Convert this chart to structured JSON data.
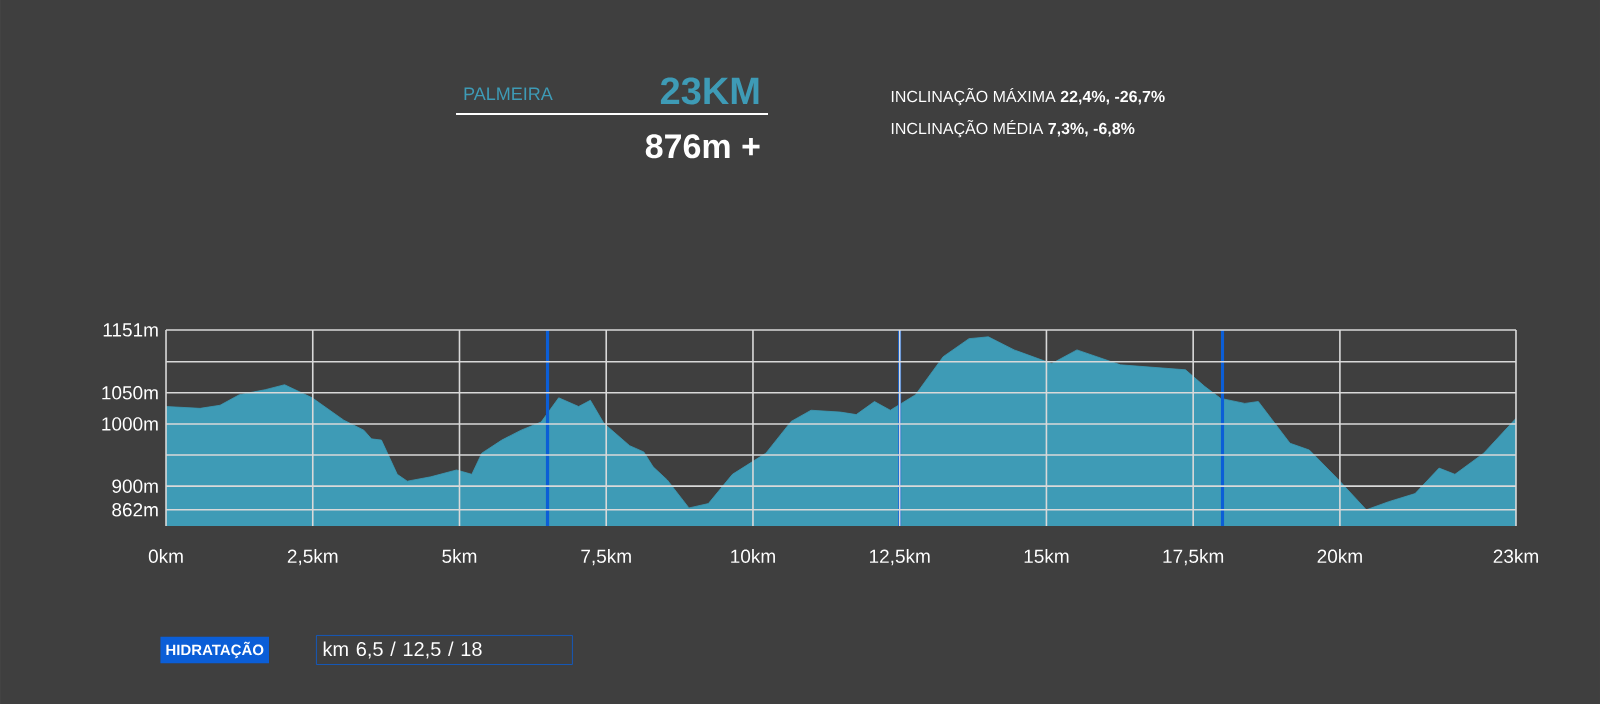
{
  "chart_data": {
    "type": "area",
    "title": "PALMEIRA",
    "subtitle": "23KM",
    "annotations": [
      "876m +",
      "INCLINAÇÃO MÁXIMA **22,4%, -26,7%**",
      "INCLINAÇÃO MÉDIA **7,3%, -6,8%**",
      "HIDRATAÇÃO",
      "km 6,5 / 12,5 / 18"
    ],
    "x": [
      0,
      0.58,
      0.92,
      1.25,
      1.69,
      2.02,
      2.49,
      3.03,
      3.37,
      3.5,
      3.67,
      3.94,
      4.11,
      4.51,
      4.95,
      5.21,
      5.38,
      5.72,
      6.05,
      6.39,
      6.69,
      7.03,
      7.23,
      7.46,
      7.9,
      8.14,
      8.3,
      8.54,
      8.91,
      9.24,
      9.65,
      10.22,
      10.65,
      10.99,
      11.49,
      11.76,
      12.07,
      12.34,
      12.77,
      13.24,
      13.68,
      14.01,
      14.45,
      15.09,
      15.52,
      16.26,
      17.37,
      17.7,
      17.97,
      18.38,
      18.61,
      19.15,
      19.48,
      19.96,
      20.45,
      20.83,
      21.28,
      21.69,
      21.96,
      22.45,
      23
    ],
    "values": [
      1028,
      1025,
      1030,
      1047,
      1055,
      1063,
      1042,
      1006,
      990,
      976,
      974,
      919,
      908,
      915,
      926,
      919,
      953,
      974,
      990,
      1003,
      1042,
      1028,
      1038,
      1001,
      965,
      955,
      931,
      910,
      865,
      872,
      919,
      953,
      1004,
      1022,
      1019,
      1015,
      1036,
      1022,
      1047,
      1108,
      1137,
      1140,
      1119,
      1097,
      1119,
      1095,
      1087,
      1060,
      1041,
      1033,
      1036,
      969,
      958,
      912,
      862,
      875,
      888,
      929,
      919,
      953,
      1009
    ],
    "color": "#3e9bb6",
    "xlim": [
      0,
      23
    ],
    "ylim": [
      836,
      1151
    ],
    "xticks": [
      {
        "value": 0,
        "label": "0km"
      },
      {
        "value": 2.5,
        "label": "2,5km"
      },
      {
        "value": 5,
        "label": "5km"
      },
      {
        "value": 7.5,
        "label": "7,5km"
      },
      {
        "value": 10,
        "label": "10km"
      },
      {
        "value": 12.5,
        "label": "12,5km"
      },
      {
        "value": 15,
        "label": "15km"
      },
      {
        "value": 17.5,
        "label": "17,5km"
      },
      {
        "value": 20,
        "label": "20km"
      },
      {
        "value": 23,
        "label": "23km"
      }
    ],
    "yticks": [
      {
        "value": 862,
        "label": "862m"
      },
      {
        "value": 900,
        "label": "900m"
      },
      {
        "value": 950,
        "label": null
      },
      {
        "value": 1000,
        "label": "1000m"
      },
      {
        "value": 1050,
        "label": "1050m"
      },
      {
        "value": 1100,
        "label": null
      },
      {
        "value": 1151,
        "label": "1151m"
      }
    ],
    "grid": true,
    "ref_lines": [
      {
        "axis": "x",
        "value": 6.5,
        "color": "#0b5ed7"
      },
      {
        "axis": "x",
        "value": 12.5,
        "color": "#0b5ed7"
      },
      {
        "axis": "x",
        "value": 18,
        "color": "#0b5ed7"
      }
    ]
  }
}
